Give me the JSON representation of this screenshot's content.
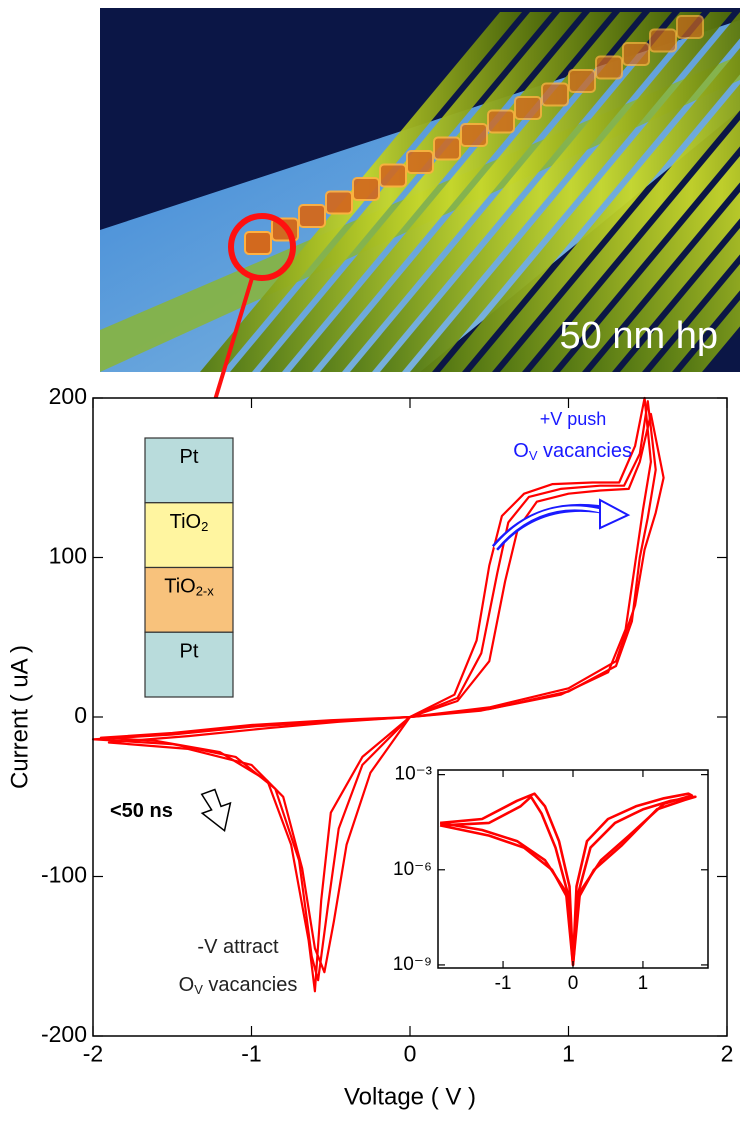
{
  "image": {
    "caption": "50 nm hp"
  },
  "chart_data": [
    {
      "type": "line",
      "xlabel": "Voltage ( V )",
      "ylabel": "Current  ( uA )",
      "xlim": [
        -2,
        2
      ],
      "ylim": [
        -200,
        200
      ],
      "xticks": [
        -2,
        -1,
        0,
        1,
        2
      ],
      "yticks": [
        -200,
        -100,
        0,
        100,
        200
      ],
      "series": [
        {
          "color": "#ff0000",
          "x": [
            0,
            0.3,
            0.45,
            0.55,
            0.62,
            0.75,
            0.95,
            1.2,
            1.35,
            1.45,
            1.5,
            1.55,
            1.5,
            1.45,
            1.4,
            1.3,
            1.0,
            0.5,
            0,
            -0.3,
            -0.45,
            -0.52,
            -0.58,
            -0.62,
            -0.7,
            -0.85,
            -1.1,
            -1.5,
            -2,
            -1.5,
            -1.0,
            -0.5,
            0
          ],
          "values": [
            0,
            12,
            40,
            90,
            122,
            138,
            143,
            145,
            145,
            165,
            198,
            155,
            125,
            100,
            60,
            32,
            16,
            5,
            0,
            -30,
            -70,
            -120,
            -165,
            -150,
            -90,
            -45,
            -25,
            -17,
            -14,
            -11,
            -6,
            -3,
            0
          ]
        },
        {
          "color": "#ff0000",
          "x": [
            0,
            0.3,
            0.5,
            0.6,
            0.68,
            0.8,
            1.0,
            1.2,
            1.38,
            1.45,
            1.52,
            1.6,
            1.55,
            1.48,
            1.42,
            1.3,
            1.0,
            0.5,
            0,
            -0.3,
            -0.5,
            -0.56,
            -0.6,
            -0.64,
            -0.75,
            -0.9,
            -1.2,
            -1.6,
            -1.95,
            -1.5,
            -1.0,
            -0.5,
            0
          ],
          "values": [
            0,
            10,
            35,
            85,
            118,
            135,
            140,
            142,
            143,
            160,
            190,
            150,
            128,
            105,
            70,
            35,
            18,
            6,
            0,
            -25,
            -60,
            -115,
            -172,
            -140,
            -80,
            -40,
            -22,
            -15,
            -13,
            -10,
            -5,
            -2,
            0
          ]
        },
        {
          "color": "#ff0000",
          "x": [
            0,
            0.28,
            0.42,
            0.5,
            0.58,
            0.72,
            0.9,
            1.15,
            1.32,
            1.42,
            1.48,
            1.52,
            1.47,
            1.42,
            1.36,
            1.25,
            0.95,
            0.45,
            0,
            -0.25,
            -0.4,
            -0.48,
            -0.54,
            -0.6,
            -0.68,
            -0.8,
            -1.0,
            -1.4,
            -1.9,
            -1.4,
            -0.9,
            -0.45,
            0
          ],
          "values": [
            0,
            14,
            48,
            95,
            126,
            140,
            146,
            147,
            147,
            170,
            200,
            160,
            130,
            96,
            55,
            28,
            14,
            4,
            0,
            -35,
            -80,
            -128,
            -160,
            -145,
            -95,
            -50,
            -30,
            -20,
            -16,
            -12,
            -7,
            -3,
            0
          ]
        }
      ],
      "layers": [
        {
          "base": "Pt",
          "color": "#b9dcdc"
        },
        {
          "base": "TiO",
          "sub": "2",
          "color": "#fff5a0"
        },
        {
          "base": "TiO",
          "sub": "2-x",
          "color": "#f8c27c"
        },
        {
          "base": "Pt",
          "color": "#b9dcdc"
        }
      ],
      "annotations": [
        {
          "text": "+V push",
          "color": "#1a1aff"
        },
        {
          "text": "O",
          "sub": "V",
          "after": " vacancies",
          "color": "#1a1aff"
        },
        {
          "text": "-V attract",
          "color": "#222222"
        },
        {
          "text": "O",
          "sub": "V",
          "after": " vacancies",
          "color": "#222222"
        },
        {
          "text": "<50 ns",
          "color": "#000000"
        }
      ]
    },
    {
      "type": "line",
      "log_y": true,
      "xlim": [
        -1.93,
        1.93
      ],
      "ylim": [
        8e-10,
        0.0014
      ],
      "xticks": [
        -1,
        0,
        1
      ],
      "yticks": [
        {
          "value": 0.001,
          "label": "10⁻³"
        },
        {
          "value": 1e-06,
          "label": "10⁻⁶"
        },
        {
          "value": 1e-09,
          "label": "10⁻⁹"
        }
      ],
      "series": [
        {
          "color": "#ff0000",
          "x": [
            -1.9,
            -1.3,
            -0.8,
            -0.55,
            -0.4,
            -0.2,
            -0.05,
            0,
            0.05,
            0.2,
            0.5,
            0.9,
            1.3,
            1.65,
            1.7,
            1.3,
            0.8,
            0.4,
            0.1,
            0,
            -0.1,
            -0.4,
            -0.8,
            -1.3,
            -1.9
          ],
          "values": [
            3e-05,
            4e-05,
            0.00015,
            0.00025,
            0.0001,
            8e-06,
            3e-07,
            1e-09,
            3e-07,
            8e-06,
            4e-05,
            0.0001,
            0.00018,
            0.00025,
            0.00022,
            0.00012,
            1.2e-05,
            2e-06,
            2e-07,
            1e-09,
            2e-07,
            2e-06,
            8e-06,
            1.8e-05,
            3e-05
          ]
        },
        {
          "color": "#ff0000",
          "x": [
            -1.9,
            -1.2,
            -0.75,
            -0.6,
            -0.45,
            -0.25,
            -0.08,
            0,
            0.08,
            0.25,
            0.6,
            1.0,
            1.4,
            1.75,
            1.6,
            1.2,
            0.7,
            0.3,
            0.05,
            0,
            -0.05,
            -0.3,
            -0.7,
            -1.2,
            -1.9
          ],
          "values": [
            2.5e-05,
            3e-05,
            0.0001,
            0.0002,
            6e-05,
            5e-06,
            2e-07,
            1e-09,
            2e-07,
            5e-06,
            3e-05,
            8e-05,
            0.00015,
            0.0002,
            0.00016,
            8e-05,
            6e-06,
            1e-06,
            1e-07,
            1e-09,
            1e-07,
            1e-06,
            5e-06,
            1.2e-05,
            2.5e-05
          ]
        }
      ]
    }
  ]
}
